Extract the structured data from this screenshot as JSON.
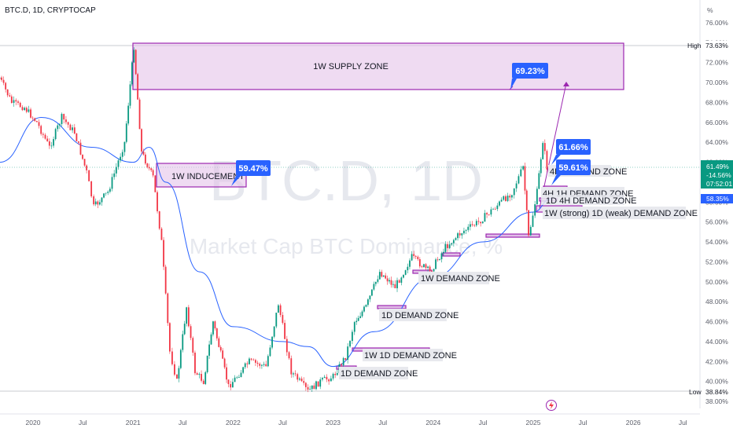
{
  "header": {
    "ticker": "BTC.D, 1D, CRYPTOCAP"
  },
  "price_axis": {
    "unit_label": "%",
    "ticks": [
      "76.00%",
      "74.00%",
      "72.00%",
      "70.00%",
      "68.00%",
      "66.00%",
      "64.00%",
      "62.00%",
      "60.00%",
      "58.00%",
      "56.00%",
      "54.00%",
      "52.00%",
      "50.00%",
      "48.00%",
      "46.00%",
      "44.00%",
      "42.00%",
      "40.00%",
      "38.00%"
    ],
    "high_label": "High",
    "high_value": "73.63%",
    "low_label": "Low",
    "low_value": "38.84%",
    "current_price": "61.49%",
    "current_change": "-14.56%",
    "countdown": "07:52:01",
    "ma_value": "58.35%"
  },
  "time_axis": {
    "ticks": [
      "2020",
      "Jul",
      "2021",
      "Jul",
      "2022",
      "Jul",
      "2023",
      "Jul",
      "2024",
      "Jul",
      "2025",
      "Jul",
      "2026",
      "Jul"
    ]
  },
  "watermark": {
    "symbol": "BTC.D, 1D",
    "name": "Market Cap BTC Dominance, %"
  },
  "annotations": {
    "supply_zone": "1W SUPPLY ZONE",
    "inducement": "1W INDUCEMENT",
    "callout_target": "69.23%",
    "callout_inducement": "59.47%",
    "callout_high": "61.66%",
    "callout_mid": "59.61%",
    "zone_4h_partial": "4H DEMAND ZONE",
    "zone_4h_1h": "4H 1H DEMAND ZONE",
    "zone_1d_4h": "1D 4H DEMAND ZONE",
    "zone_1w_strong": "1W (strong)  1D (weak) DEMAND ZONE",
    "zone_1w_demand": "1W DEMAND ZONE",
    "zone_1d_demand_mid": "1D DEMAND ZONE",
    "zone_1w_1d": "1W 1D DEMAND ZONE",
    "zone_1d_demand_low": "1D DEMAND ZONE"
  },
  "colors": {
    "up_candle": "#089981",
    "down_candle": "#f23645",
    "ma_line": "#2962ff",
    "zone_border": "#9c27b0",
    "zone_fill": "#e1bee7",
    "callout_bg": "#2962ff",
    "current_price_bg": "#089981"
  },
  "chart_data": {
    "type": "candlestick",
    "title": "BTC.D, 1D, CRYPTOCAP",
    "x_range": [
      "2019-09",
      "2026-10"
    ],
    "ylim": [
      37.5,
      77
    ],
    "y_scale": "linear",
    "grid": false,
    "price_path": [
      {
        "date": "2019-09-01",
        "value": 70.5
      },
      {
        "date": "2019-10-15",
        "value": 68.0
      },
      {
        "date": "2019-12-01",
        "value": 67.5
      },
      {
        "date": "2020-01-15",
        "value": 66.0
      },
      {
        "date": "2020-03-01",
        "value": 63.5
      },
      {
        "date": "2020-04-15",
        "value": 66.5
      },
      {
        "date": "2020-06-01",
        "value": 65.0
      },
      {
        "date": "2020-07-15",
        "value": 61.0
      },
      {
        "date": "2020-08-10",
        "value": 57.5
      },
      {
        "date": "2020-10-01",
        "value": 59.0
      },
      {
        "date": "2020-12-01",
        "value": 64.0
      },
      {
        "date": "2021-01-04",
        "value": 73.63
      },
      {
        "date": "2021-02-01",
        "value": 63.0
      },
      {
        "date": "2021-03-15",
        "value": 60.5
      },
      {
        "date": "2021-04-15",
        "value": 54.0
      },
      {
        "date": "2021-05-15",
        "value": 43.0
      },
      {
        "date": "2021-06-10",
        "value": 40.0
      },
      {
        "date": "2021-07-15",
        "value": 47.5
      },
      {
        "date": "2021-08-15",
        "value": 41.0
      },
      {
        "date": "2021-09-15",
        "value": 40.0
      },
      {
        "date": "2021-10-20",
        "value": 46.0
      },
      {
        "date": "2021-12-15",
        "value": 39.5
      },
      {
        "date": "2022-01-15",
        "value": 40.5
      },
      {
        "date": "2022-03-01",
        "value": 42.0
      },
      {
        "date": "2022-05-01",
        "value": 41.5
      },
      {
        "date": "2022-06-15",
        "value": 47.8
      },
      {
        "date": "2022-08-01",
        "value": 41.0
      },
      {
        "date": "2022-10-01",
        "value": 39.0
      },
      {
        "date": "2022-11-15",
        "value": 40.0
      },
      {
        "date": "2023-01-01",
        "value": 40.5
      },
      {
        "date": "2023-02-15",
        "value": 42.5
      },
      {
        "date": "2023-03-20",
        "value": 46.0
      },
      {
        "date": "2023-05-01",
        "value": 47.5
      },
      {
        "date": "2023-06-20",
        "value": 51.0
      },
      {
        "date": "2023-08-15",
        "value": 49.5
      },
      {
        "date": "2023-10-15",
        "value": 52.5
      },
      {
        "date": "2023-12-20",
        "value": 51.0
      },
      {
        "date": "2024-02-15",
        "value": 53.5
      },
      {
        "date": "2024-04-15",
        "value": 55.0
      },
      {
        "date": "2024-06-15",
        "value": 56.0
      },
      {
        "date": "2024-08-15",
        "value": 57.5
      },
      {
        "date": "2024-10-15",
        "value": 59.0
      },
      {
        "date": "2024-11-25",
        "value": 61.5
      },
      {
        "date": "2024-12-15",
        "value": 54.5
      },
      {
        "date": "2025-01-15",
        "value": 59.0
      },
      {
        "date": "2025-02-05",
        "value": 64.2
      },
      {
        "date": "2025-02-20",
        "value": 61.5
      },
      {
        "date": "2025-03-08",
        "value": 61.49
      }
    ],
    "moving_average": [
      {
        "date": "2019-09-01",
        "value": 62.0
      },
      {
        "date": "2020-02-01",
        "value": 66.5
      },
      {
        "date": "2020-08-01",
        "value": 63.5
      },
      {
        "date": "2021-01-01",
        "value": 62.0
      },
      {
        "date": "2021-03-01",
        "value": 63.5
      },
      {
        "date": "2021-05-01",
        "value": 60.0
      },
      {
        "date": "2021-09-01",
        "value": 51.0
      },
      {
        "date": "2022-01-01",
        "value": 45.5
      },
      {
        "date": "2022-07-01",
        "value": 44.0
      },
      {
        "date": "2022-10-01",
        "value": 43.5
      },
      {
        "date": "2023-01-01",
        "value": 41.5
      },
      {
        "date": "2023-06-01",
        "value": 45.0
      },
      {
        "date": "2024-01-01",
        "value": 50.5
      },
      {
        "date": "2024-07-01",
        "value": 54.0
      },
      {
        "date": "2025-01-01",
        "value": 57.0
      },
      {
        "date": "2025-03-08",
        "value": 58.35
      }
    ],
    "zones": [
      {
        "label": "1W SUPPLY ZONE",
        "from": "2021-01-04",
        "to": "2025-09-30",
        "low": 69.3,
        "high": 74.0
      },
      {
        "label": "1W INDUCEMENT",
        "from": "2021-02-10",
        "to": "2022-01-20",
        "low": 59.47,
        "high": 61.8
      },
      {
        "label": "1W (strong)  1D (weak) DEMAND ZONE",
        "from": "2025-02-20",
        "to": "2025-05-20",
        "low": 57.2,
        "high": 58.0
      },
      {
        "label": "1W DEMAND ZONE",
        "from": "2023-12-15",
        "to": "2024-04-15",
        "low": 50.8,
        "high": 51.0
      },
      {
        "label": "1D DEMAND ZONE",
        "from": "2023-05-01",
        "to": "2023-08-01",
        "low": 47.2,
        "high": 47.5
      },
      {
        "label": "1W 1D DEMAND ZONE",
        "from": "2023-02-01",
        "to": "2024-05-15",
        "low": 42.9,
        "high": 43.2
      },
      {
        "label": "1D DEMAND ZONE",
        "from": "2023-01-01",
        "to": "2023-03-01",
        "low": 41.2,
        "high": 41.4
      }
    ],
    "callouts": [
      {
        "text": "69.23%",
        "value": 69.23
      },
      {
        "text": "59.47%",
        "value": 59.47
      },
      {
        "text": "61.66%",
        "value": 61.66
      },
      {
        "text": "59.61%",
        "value": 59.61
      }
    ],
    "high": 73.63,
    "low": 38.84,
    "last": 61.49,
    "change": -14.56,
    "ma_last": 58.35
  }
}
